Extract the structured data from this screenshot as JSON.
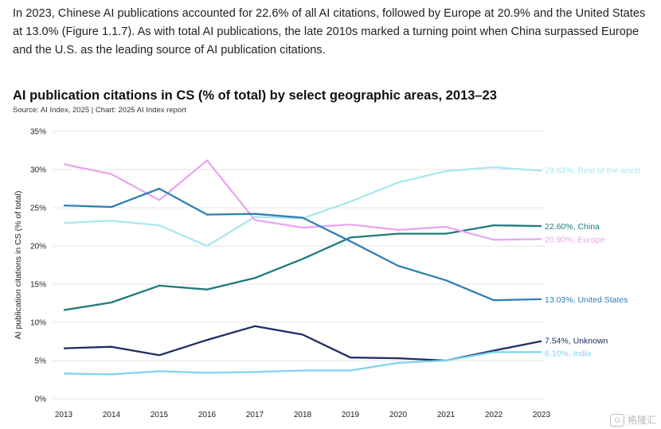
{
  "intro_text": "In 2023, Chinese AI publications accounted for 22.6% of all AI citations, followed by Europe at 20.9% and the United States at 13.0% (Figure 1.1.7). As with total AI publications, the late 2010s marked a turning point when China surpassed Europe and the U.S. as the leading source of AI publication citations.",
  "watermark": "格隆汇",
  "chart_data": {
    "type": "line",
    "title": "AI publication citations in CS (% of total) by select geographic areas, 2013–23",
    "source": "Source: AI Index, 2025 | Chart: 2025 AI Index report",
    "xlabel": "",
    "ylabel": "AI publication citations in CS (% of total)",
    "ylim": [
      0,
      35
    ],
    "yticks": [
      0,
      5,
      10,
      15,
      20,
      25,
      30,
      35
    ],
    "ytick_labels": [
      "0%",
      "5%",
      "10%",
      "15%",
      "20%",
      "25%",
      "30%",
      "35%"
    ],
    "x": [
      2013,
      2014,
      2015,
      2016,
      2017,
      2018,
      2019,
      2020,
      2021,
      2022,
      2023
    ],
    "series": [
      {
        "name": "Rest of the world",
        "label": "29.83%, Rest of the world",
        "color": "#a8e8ee",
        "values": [
          23.0,
          23.3,
          22.7,
          20.0,
          23.8,
          23.6,
          25.8,
          28.3,
          29.8,
          30.3,
          29.83
        ]
      },
      {
        "name": "China",
        "label": "22.60%, China",
        "color": "#1f7a7c",
        "values": [
          11.6,
          12.6,
          14.8,
          14.3,
          15.8,
          18.3,
          21.1,
          21.6,
          21.6,
          22.7,
          22.6
        ]
      },
      {
        "name": "Europe",
        "label": "20.90%, Europe",
        "color": "#eaa6ee",
        "values": [
          30.7,
          29.4,
          26.0,
          31.2,
          23.4,
          22.4,
          22.8,
          22.1,
          22.5,
          20.8,
          20.9
        ]
      },
      {
        "name": "United States",
        "label": "13.03%, United States",
        "color": "#2e7fb6",
        "values": [
          25.3,
          25.1,
          27.5,
          24.1,
          24.2,
          23.7,
          20.6,
          17.4,
          15.5,
          12.9,
          13.03
        ]
      },
      {
        "name": "Unknown",
        "label": "7.54%, Unknown",
        "color": "#1c2f63",
        "values": [
          6.6,
          6.8,
          5.7,
          7.7,
          9.5,
          8.4,
          5.4,
          5.3,
          5.0,
          6.3,
          7.54
        ]
      },
      {
        "name": "India",
        "label": "6.10%, India",
        "color": "#7fd3f2",
        "values": [
          3.3,
          3.2,
          3.6,
          3.4,
          3.5,
          3.7,
          3.7,
          4.7,
          5.0,
          6.1,
          6.1
        ]
      }
    ]
  }
}
